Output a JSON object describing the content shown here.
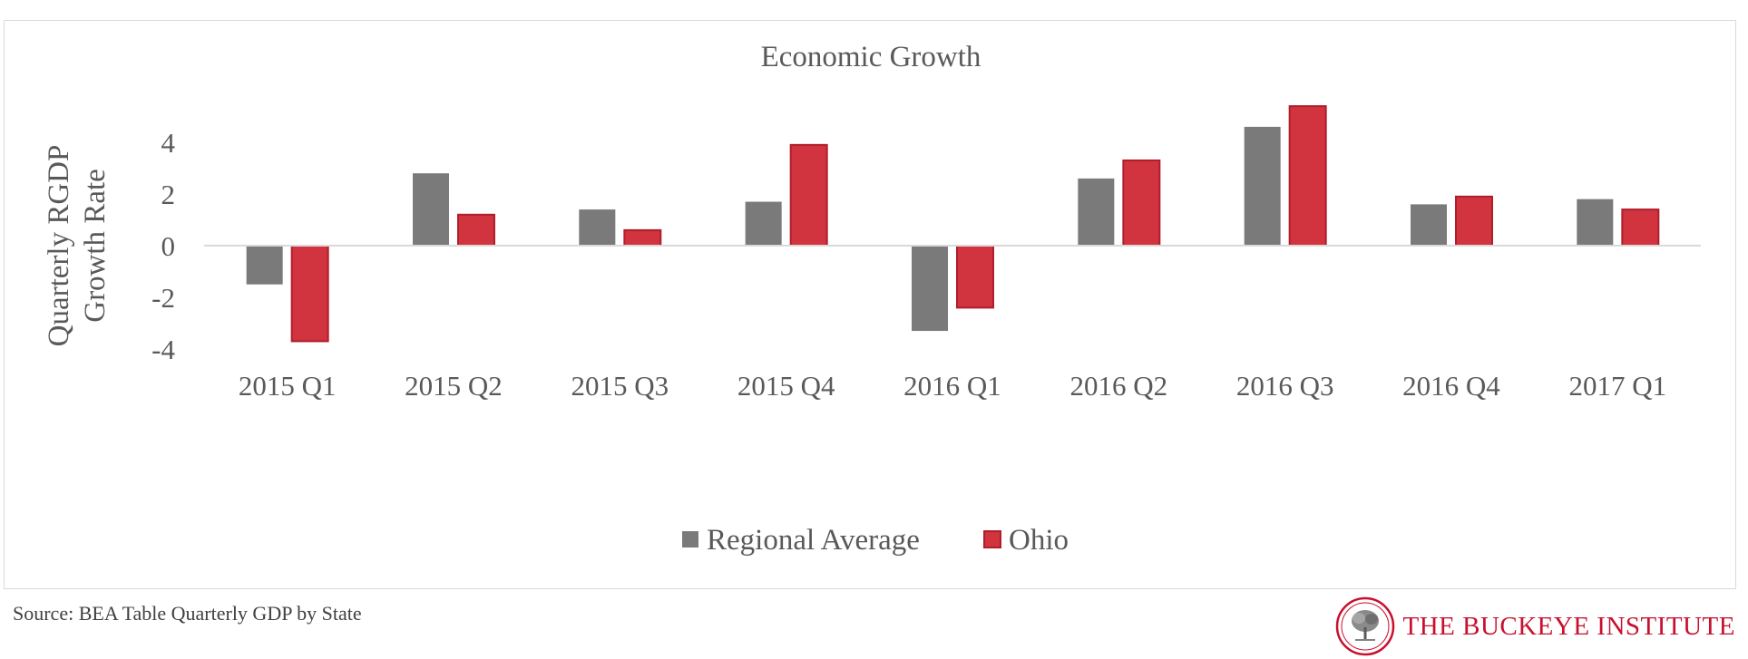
{
  "chart_data": {
    "type": "bar",
    "title": "Economic Growth",
    "ylabel": [
      "Quarterly RGDP",
      "Growth Rate"
    ],
    "xlabel": "",
    "categories": [
      "2015 Q1",
      "2015 Q2",
      "2015 Q3",
      "2015 Q4",
      "2016 Q1",
      "2016 Q2",
      "2016 Q3",
      "2016 Q4",
      "2017 Q1"
    ],
    "yticks": [
      -4,
      -2,
      0,
      2,
      4
    ],
    "ylim": [
      -4.4,
      5.6
    ],
    "grid": false,
    "legend_position": "bottom",
    "series": [
      {
        "name": "Regional Average",
        "color": "#7a7a7a",
        "values": [
          -1.5,
          2.8,
          1.4,
          1.7,
          -3.3,
          2.6,
          4.6,
          1.6,
          1.8
        ]
      },
      {
        "name": "Ohio",
        "color": "#d1333f",
        "values": [
          -3.7,
          1.2,
          0.6,
          3.9,
          -2.4,
          3.3,
          5.4,
          1.9,
          1.4
        ]
      }
    ]
  },
  "footer": {
    "source": "Source: BEA Table Quarterly GDP by State",
    "brand": "THE BUCKEYE INSTITUTE"
  },
  "colors": {
    "brand": "#c8102e",
    "axis": "#d9d9d9",
    "text": "#595959"
  }
}
